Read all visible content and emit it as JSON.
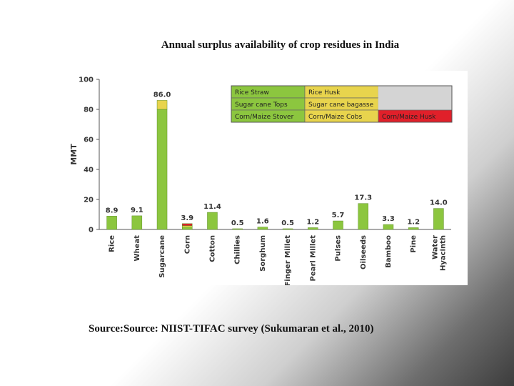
{
  "slide": {
    "title": "Annual surplus availability of crop residues in India",
    "source": "Source:Source: NIIST-TIFAC survey (Sukumaran et al., 2010)"
  },
  "chart_data": {
    "type": "bar",
    "ylabel": "MMT",
    "ylim": [
      0,
      100
    ],
    "yticks": [
      0,
      20,
      40,
      60,
      80,
      100
    ],
    "grid": false,
    "legend_position": "top-right",
    "categories": [
      "Rice",
      "Wheat",
      "Sugarcane",
      "Corn",
      "Cotton",
      "Chillies",
      "Sorghum",
      "Finger Millet",
      "Pearl Millet",
      "Pulses",
      "Oilseeds",
      "Bamboo",
      "Pine",
      "Water Hyacinth"
    ],
    "values": [
      8.9,
      9.1,
      86.0,
      3.9,
      11.4,
      0.5,
      1.6,
      0.5,
      1.2,
      5.7,
      17.3,
      3.3,
      1.2,
      14.0
    ],
    "value_labels": [
      "8.9",
      "9.1",
      "86.0",
      "3.9",
      "11.4",
      "0.5",
      "1.6",
      "0.5",
      "1.2",
      "5.7",
      "17.3",
      "3.3",
      "1.2",
      "14.0"
    ],
    "series": [
      {
        "name": "Rice Straw",
        "color": "#8cc63f"
      },
      {
        "name": "Rice Husk",
        "color": "#e8d44d"
      },
      {
        "name": "Sugar cane Tops",
        "color": "#8cc63f"
      },
      {
        "name": "Sugar cane bagasse",
        "color": "#e8d44d"
      },
      {
        "name": "Corn/Maize Stover",
        "color": "#8cc63f"
      },
      {
        "name": "Corn/Maize Cobs",
        "color": "#e8d44d"
      },
      {
        "name": "Corn/Maize Husk",
        "color": "#e0202a"
      }
    ],
    "stacks": {
      "Sugarcane": [
        {
          "series": "Sugar cane Tops",
          "value": 80.0
        },
        {
          "series": "Sugar cane bagasse",
          "value": 6.0
        }
      ],
      "Corn": [
        {
          "series": "Corn/Maize Stover",
          "value": 1.6
        },
        {
          "series": "Corn/Maize Cobs",
          "value": 0.9
        },
        {
          "series": "Corn/Maize Husk",
          "value": 1.4
        }
      ]
    },
    "legend_rows": [
      [
        "Rice Straw",
        "Rice Husk",
        ""
      ],
      [
        "Sugar cane Tops",
        "Sugar cane bagasse",
        ""
      ],
      [
        "Corn/Maize Stover",
        "Corn/Maize  Cobs",
        "Corn/Maize Husk"
      ]
    ],
    "colors": {
      "bar_fill": "#8cc63f",
      "bar_stroke": "#5f8f2a",
      "yellow": "#e8d44d",
      "red": "#e0202a",
      "legend_blank": "#d4d4d4",
      "axis": "#555555",
      "label": "#333333"
    }
  }
}
